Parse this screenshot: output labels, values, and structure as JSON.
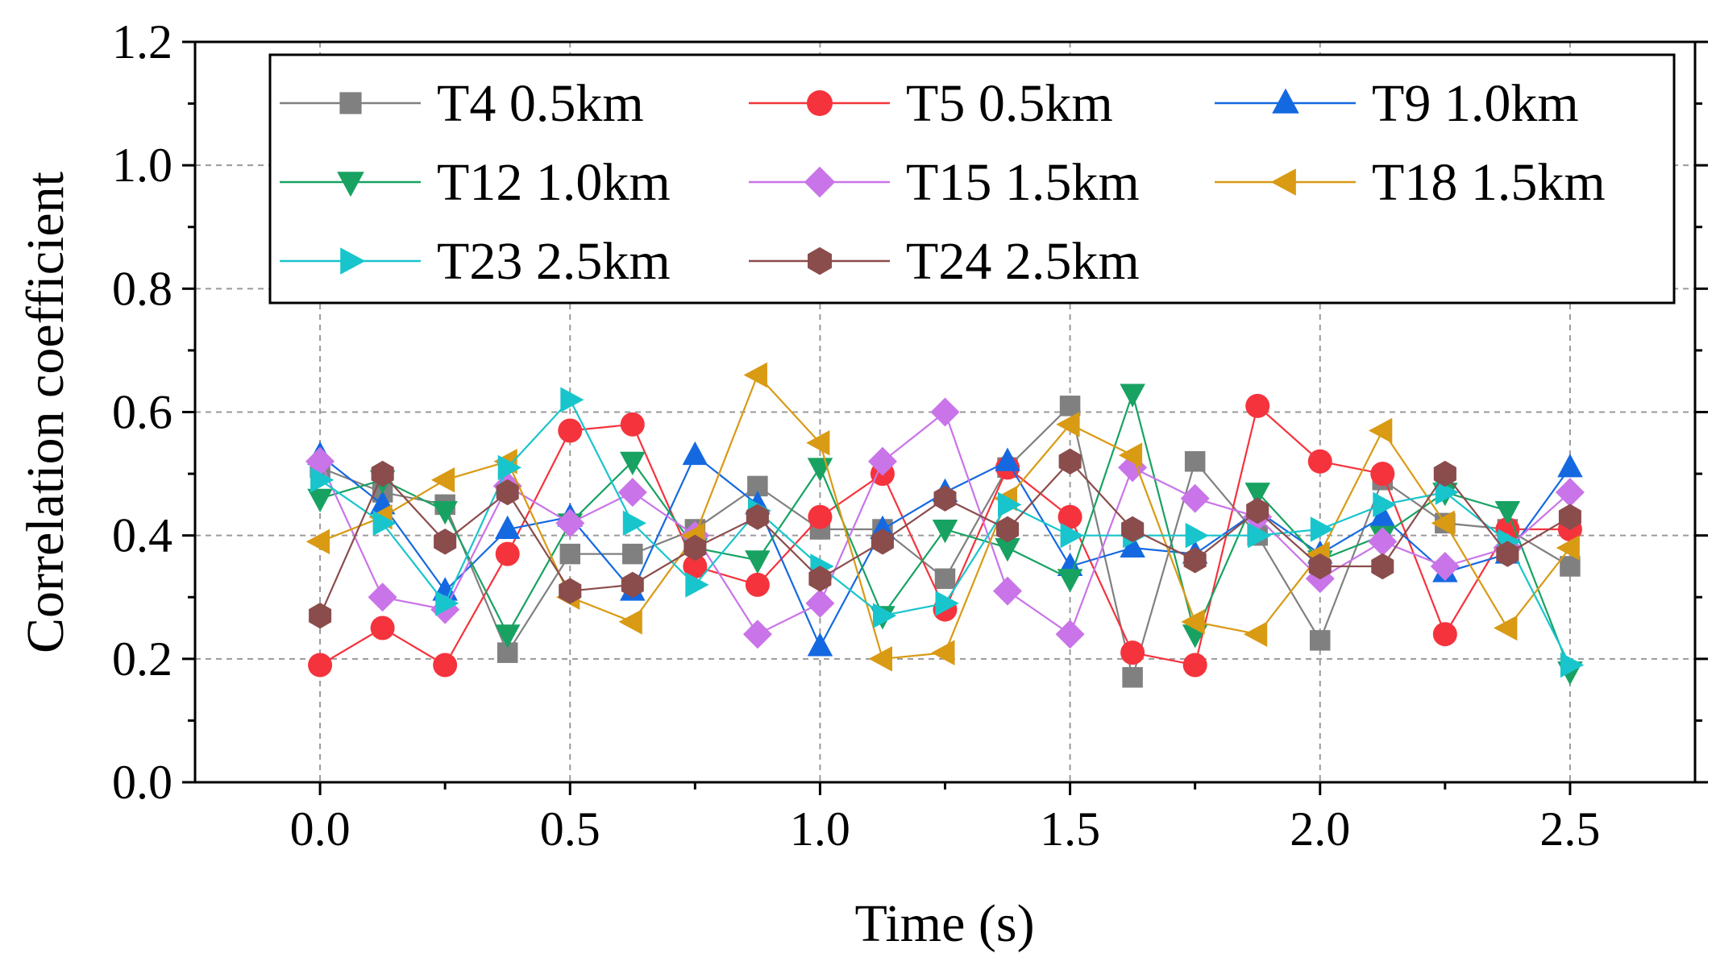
{
  "chart_data": {
    "type": "line",
    "title": "",
    "xlabel": "Time (s)",
    "ylabel": "Correlation coefficient",
    "xlim": [
      -0.25,
      2.75
    ],
    "ylim": [
      0.0,
      1.2
    ],
    "x": [
      0,
      0.125,
      0.25,
      0.375,
      0.5,
      0.625,
      0.75,
      0.875,
      1.0,
      1.125,
      1.25,
      1.375,
      1.5,
      1.625,
      1.75,
      1.875,
      2.0,
      2.125,
      2.25,
      2.375,
      2.5
    ],
    "x_ticks": [
      0.0,
      0.5,
      1.0,
      1.5,
      2.0,
      2.5
    ],
    "x_tick_labels": [
      "0.0",
      "0.5",
      "1.0",
      "1.5",
      "2.0",
      "2.5"
    ],
    "y_ticks": [
      0.0,
      0.2,
      0.4,
      0.6,
      0.8,
      1.0,
      1.2
    ],
    "y_tick_labels": [
      "0.0",
      "0.2",
      "0.4",
      "0.6",
      "0.8",
      "1.0",
      "1.2"
    ],
    "grid": true,
    "legend_position": "top",
    "series": [
      {
        "name": "T4 0.5km",
        "color": "#808080",
        "marker": "square",
        "values": [
          0.51,
          0.47,
          0.45,
          0.21,
          0.37,
          0.37,
          0.41,
          0.48,
          0.41,
          0.41,
          0.33,
          0.51,
          0.61,
          0.17,
          0.52,
          0.4,
          0.23,
          0.49,
          0.42,
          0.41,
          0.35
        ]
      },
      {
        "name": "T5 0.5km",
        "color": "#f5333c",
        "marker": "circle",
        "values": [
          0.19,
          0.25,
          0.19,
          0.37,
          0.57,
          0.58,
          0.35,
          0.32,
          0.43,
          0.5,
          0.28,
          0.51,
          0.43,
          0.21,
          0.19,
          0.61,
          0.52,
          0.5,
          0.24,
          0.41,
          0.41
        ]
      },
      {
        "name": "T9 1.0km",
        "color": "#1469e1",
        "marker": "triangle-up",
        "values": [
          0.53,
          0.45,
          0.31,
          0.41,
          0.43,
          0.31,
          0.53,
          0.45,
          0.22,
          0.41,
          0.47,
          0.52,
          0.35,
          0.38,
          0.37,
          0.44,
          0.37,
          0.43,
          0.34,
          0.37,
          0.51
        ]
      },
      {
        "name": "T12 1.0km",
        "color": "#18a262",
        "marker": "triangle-down",
        "values": [
          0.46,
          0.49,
          0.44,
          0.24,
          0.42,
          0.52,
          0.38,
          0.36,
          0.51,
          0.27,
          0.41,
          0.38,
          0.33,
          0.63,
          0.24,
          0.47,
          0.36,
          0.4,
          0.47,
          0.44,
          0.18
        ]
      },
      {
        "name": "T15 1.5km",
        "color": "#c974e8",
        "marker": "diamond",
        "values": [
          0.52,
          0.3,
          0.28,
          0.48,
          0.42,
          0.47,
          0.4,
          0.24,
          0.29,
          0.52,
          0.6,
          0.31,
          0.24,
          0.51,
          0.46,
          0.43,
          0.33,
          0.39,
          0.35,
          0.38,
          0.47
        ]
      },
      {
        "name": "T18 1.5km",
        "color": "#d99a14",
        "marker": "triangle-left",
        "values": [
          0.39,
          0.43,
          0.49,
          0.52,
          0.3,
          0.26,
          0.4,
          0.66,
          0.55,
          0.2,
          0.21,
          0.46,
          0.58,
          0.53,
          0.26,
          0.24,
          0.37,
          0.57,
          0.42,
          0.25,
          0.38
        ]
      },
      {
        "name": "T23 2.5km",
        "color": "#19c5cc",
        "marker": "triangle-right",
        "values": [
          0.49,
          0.42,
          0.29,
          0.51,
          0.62,
          0.42,
          0.32,
          0.44,
          0.35,
          0.27,
          0.29,
          0.45,
          0.4,
          0.4,
          0.4,
          0.4,
          0.41,
          0.45,
          0.47,
          0.39,
          0.19
        ]
      },
      {
        "name": "T24 2.5km",
        "color": "#8b4c4c",
        "marker": "hexagon",
        "values": [
          0.27,
          0.5,
          0.39,
          0.47,
          0.31,
          0.32,
          0.38,
          0.43,
          0.33,
          0.39,
          0.46,
          0.41,
          0.52,
          0.41,
          0.36,
          0.44,
          0.35,
          0.35,
          0.5,
          0.37,
          0.43
        ]
      }
    ]
  }
}
